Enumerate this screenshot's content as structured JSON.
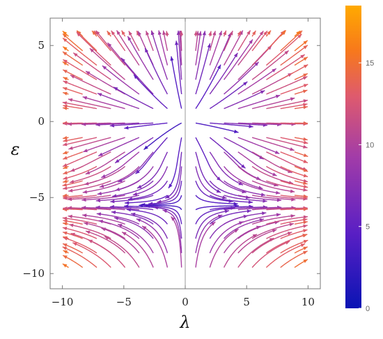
{
  "chart_data": {
    "type": "stream",
    "title": "",
    "xlabel": "λ",
    "ylabel": "ε",
    "xlim": [
      -11,
      11
    ],
    "ylim": [
      -11,
      6.8
    ],
    "x_ticks": [
      -10,
      -5,
      0,
      5,
      10
    ],
    "y_ticks": [
      5,
      0,
      -5,
      -10
    ],
    "x_tick_labels": [
      "−10",
      "−5",
      "0",
      "5",
      "10"
    ],
    "y_tick_labels": [
      "5",
      "0",
      "−5",
      "−10"
    ],
    "grid": false,
    "fixed_points": [
      {
        "x": 0,
        "y": 0,
        "kind": "unstable node"
      },
      {
        "x": 0,
        "y": -5.5,
        "kind": "saddle"
      }
    ],
    "vertical_reference_line": {
      "x": 0
    },
    "colorbar": {
      "range": [
        0,
        18.5
      ],
      "ticks": [
        0,
        5,
        10,
        15
      ],
      "tick_labels": [
        "0",
        "5",
        "10",
        "15"
      ],
      "colors": [
        "#0a14b4",
        "#5a1fc4",
        "#a23ca8",
        "#de5a6e",
        "#f7781c",
        "#ffaa00"
      ]
    }
  }
}
